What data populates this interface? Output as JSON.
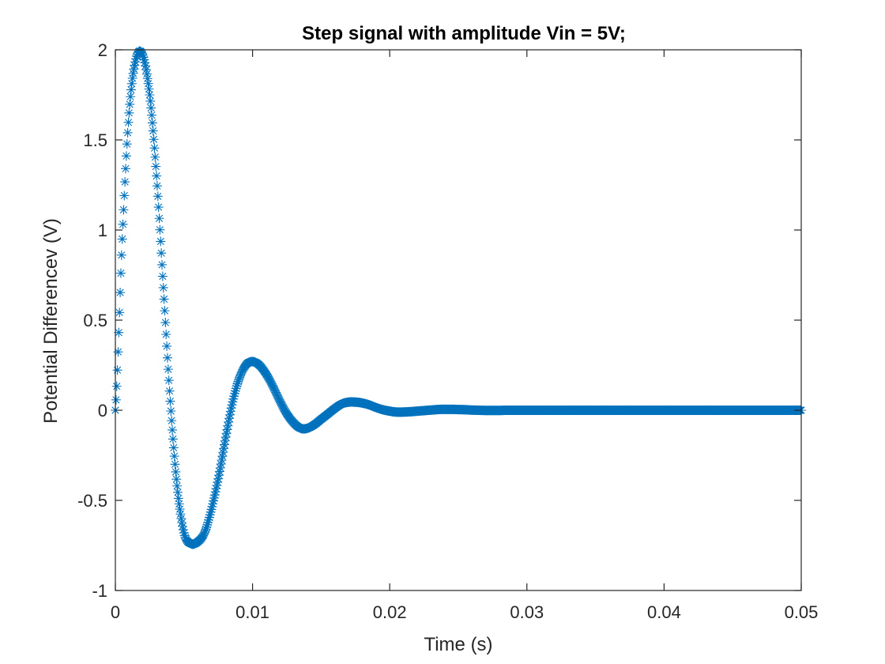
{
  "chart_data": {
    "type": "scatter",
    "title": "Step signal with amplitude Vin = 5V;",
    "xlabel": "Time (s)",
    "ylabel": "Potential Differencev (V)",
    "xlim": [
      0,
      0.05
    ],
    "ylim": [
      -1,
      2
    ],
    "x_ticks": [
      0,
      0.01,
      0.02,
      0.03,
      0.04,
      0.05
    ],
    "x_tick_labels": [
      "0",
      "0.01",
      "0.02",
      "0.03",
      "0.04",
      "0.05"
    ],
    "y_ticks": [
      -1,
      -0.5,
      0,
      0.5,
      1,
      1.5,
      2
    ],
    "y_tick_labels": [
      "-1",
      "-0.5",
      "0",
      "0.5",
      "1",
      "1.5",
      "2"
    ],
    "grid": false,
    "box": true,
    "marker": "asterisk",
    "color": "#0072BD",
    "series": [
      {
        "x": [
          0,
          0.0005,
          0.001,
          0.0015,
          0.002,
          0.0025,
          0.003,
          0.0035,
          0.004,
          0.0045,
          0.005,
          0.0055,
          0.006,
          0.0065,
          0.007,
          0.0075,
          0.008,
          0.0085,
          0.009,
          0.0095,
          0.01,
          0.0105,
          0.011,
          0.0115,
          0.012,
          0.0125,
          0.013,
          0.0135,
          0.014,
          0.0145,
          0.015,
          0.0155,
          0.016,
          0.0165,
          0.017,
          0.0175,
          0.018,
          0.0185,
          0.019,
          0.0195,
          0.02,
          0.0205,
          0.021,
          0.0215,
          0.022,
          0.0225,
          0.023,
          0.0235,
          0.024,
          0.0245,
          0.025,
          0.0255,
          0.026,
          0.0265,
          0.027,
          0.0275,
          0.028,
          0.0285,
          0.029,
          0.0295,
          0.03,
          0.0305,
          0.031,
          0.0315,
          0.032,
          0.0325,
          0.033,
          0.0335,
          0.034,
          0.0345,
          0.035,
          0.0355,
          0.036,
          0.0365,
          0.037,
          0.0375,
          0.038,
          0.0385,
          0.039,
          0.0395,
          0.04,
          0.0405,
          0.041,
          0.0415,
          0.042,
          0.0425,
          0.043,
          0.0435,
          0.044,
          0.0445,
          0.045,
          0.0455,
          0.046,
          0.0465,
          0.047,
          0.0475,
          0.048,
          0.0485,
          0.049,
          0.0495,
          0.05
        ],
        "y": [
          0,
          0.95,
          1.65,
          1.95,
          1.97,
          1.75,
          1.3,
          0.68,
          0.05,
          -0.42,
          -0.68,
          -0.74,
          -0.73,
          -0.68,
          -0.55,
          -0.38,
          -0.17,
          0.03,
          0.17,
          0.25,
          0.27,
          0.25,
          0.2,
          0.13,
          0.05,
          -0.02,
          -0.07,
          -0.1,
          -0.1,
          -0.08,
          -0.05,
          -0.02,
          0.01,
          0.035,
          0.045,
          0.045,
          0.04,
          0.03,
          0.015,
          0.003,
          -0.005,
          -0.01,
          -0.01,
          -0.008,
          -0.005,
          -0.002,
          0.001,
          0.004,
          0.005,
          0.005,
          0.004,
          0.003,
          0.001,
          0,
          -0.001,
          -0.001,
          -0.001,
          0,
          0,
          0,
          0,
          0,
          0,
          0,
          0,
          0,
          0,
          0,
          0,
          0,
          0,
          0,
          0,
          0,
          0,
          0,
          0,
          0,
          0,
          0,
          0,
          0,
          0,
          0,
          0,
          0,
          0,
          0,
          0,
          0,
          0,
          0,
          0,
          0,
          0,
          0,
          0,
          0,
          0,
          0,
          0
        ]
      }
    ]
  }
}
